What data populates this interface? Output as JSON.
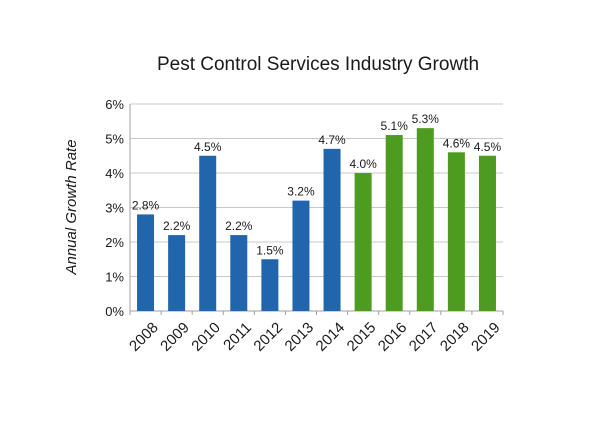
{
  "chart_data": {
    "type": "bar",
    "title": "Pest Control Services Industry Growth",
    "ylabel": "Annual Growth Rate",
    "xlabel": "",
    "categories": [
      "2008",
      "2009",
      "2010",
      "2011",
      "2012",
      "2013",
      "2014",
      "2015",
      "2016",
      "2017",
      "2018",
      "2019"
    ],
    "values": [
      2.8,
      2.2,
      4.5,
      2.2,
      1.5,
      3.2,
      4.7,
      4.0,
      5.1,
      5.3,
      4.6,
      4.5
    ],
    "data_labels": [
      "2.8%",
      "2.2%",
      "4.5%",
      "2.2%",
      "1.5%",
      "3.2%",
      "4.7%",
      "4.0%",
      "5.1%",
      "5.3%",
      "4.6%",
      "4.5%"
    ],
    "y_ticks": [
      0,
      1,
      2,
      3,
      4,
      5,
      6
    ],
    "y_tick_labels": [
      "0%",
      "1%",
      "2%",
      "3%",
      "4%",
      "5%",
      "6%"
    ],
    "ylim": [
      0,
      6
    ],
    "grid": true,
    "legend": "none",
    "colors": {
      "historical": "#2166ac",
      "forecast": "#4d9b1f",
      "grid": "#c8c8c8",
      "text": "#1a1a1a"
    },
    "forecast_start_index": 7
  }
}
